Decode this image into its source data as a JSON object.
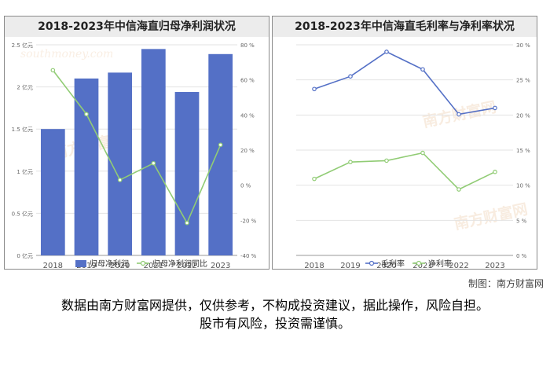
{
  "credit": "制图：南方财富网",
  "disclaimer": {
    "line1": "数据由南方财富网提供，仅供参考，不构成投资建议，据此操作，风险自担。",
    "line2": "股市有风险，投资需谨慎。"
  },
  "watermark": {
    "brand": "南方财富网",
    "url": "southmoney.com"
  },
  "chart_data": [
    {
      "type": "bar",
      "title": "2018-2023年中信海直归母净利润状况",
      "categories": [
        "2018",
        "2019",
        "2020",
        "2021",
        "2022",
        "2023"
      ],
      "series": [
        {
          "name": "归母净利润",
          "kind": "bar",
          "axis": "left",
          "color": "#5470c6",
          "values": [
            1.5,
            2.1,
            2.17,
            2.45,
            1.94,
            2.39
          ]
        },
        {
          "name": "归母净利润同比",
          "kind": "line",
          "axis": "right",
          "color": "#91cc75",
          "values": [
            65.5,
            40.5,
            3.0,
            12.5,
            -21.5,
            23.0
          ]
        }
      ],
      "y_left": {
        "min": 0,
        "max": 2.5,
        "ticks": [
          "0 亿元",
          "0.5 亿元",
          "1 亿元",
          "1.5 亿元",
          "2 亿元",
          "2.5 亿元"
        ]
      },
      "y_right": {
        "min": -40,
        "max": 80,
        "ticks": [
          "-40 %",
          "-20 %",
          "0 %",
          "20 %",
          "40 %",
          "60 %",
          "80 %"
        ]
      },
      "grid": true,
      "legend": "bottom"
    },
    {
      "type": "line",
      "title": "2018-2023年中信海直毛利率与净利率状况",
      "categories": [
        "2018",
        "2019",
        "2020",
        "2021",
        "2022",
        "2023"
      ],
      "series": [
        {
          "name": "毛利率",
          "color": "#5470c6",
          "values": [
            23.7,
            25.5,
            29.0,
            26.5,
            20.1,
            21.0
          ]
        },
        {
          "name": "净利率",
          "color": "#91cc75",
          "values": [
            10.9,
            13.3,
            13.5,
            14.6,
            9.4,
            11.9
          ]
        }
      ],
      "y_right": {
        "min": 0,
        "max": 30,
        "ticks": [
          "0 %",
          "5 %",
          "10 %",
          "15 %",
          "20 %",
          "25 %",
          "30 %"
        ]
      },
      "grid": true,
      "legend": "bottom"
    }
  ]
}
